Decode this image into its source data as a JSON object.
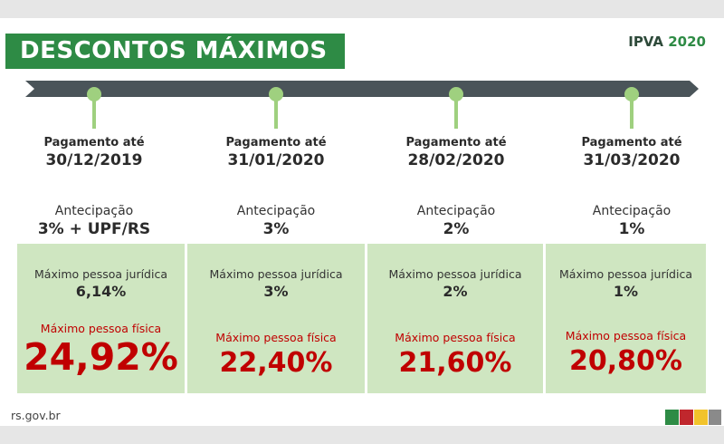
{
  "header": {
    "title": "DESCONTOS MÁXIMOS",
    "tag_prefix": "IPVA",
    "tag_year": "2020"
  },
  "columns": [
    {
      "payment_label": "Pagamento até",
      "date": "30/12/2019",
      "advance_label": "Antecipação",
      "advance_value": "3% + UPF/RS",
      "pj_label": "Máximo pessoa jurídica",
      "pj_value": "6,14%",
      "pf_label": "Máximo pessoa física",
      "pf_value": "24,92%"
    },
    {
      "payment_label": "Pagamento até",
      "date": "31/01/2020",
      "advance_label": "Antecipação",
      "advance_value": "3%",
      "pj_label": "Máximo pessoa jurídica",
      "pj_value": "3%",
      "pf_label": "Máximo pessoa física",
      "pf_value": "22,40%"
    },
    {
      "payment_label": "Pagamento até",
      "date": "28/02/2020",
      "advance_label": "Antecipação",
      "advance_value": "2%",
      "pj_label": "Máximo pessoa jurídica",
      "pj_value": "2%",
      "pf_label": "Máximo pessoa física",
      "pf_value": "21,60%"
    },
    {
      "payment_label": "Pagamento até",
      "date": "31/03/2020",
      "advance_label": "Antecipação",
      "advance_value": "1%",
      "pj_label": "Máximo pessoa jurídica",
      "pj_value": "1%",
      "pf_label": "Máximo pessoa física",
      "pf_value": "20,80%"
    }
  ],
  "footer": {
    "site": "rs.gov.br"
  },
  "colors": {
    "brand_green": "#2e8b45",
    "box_green": "#cfe6c1",
    "highlight_red": "#c00000",
    "timeline": "#4a5459",
    "pin": "#9fd07f",
    "flag": [
      "#2e8b45",
      "#c0272d",
      "#f2c32b",
      "#8a8a8a"
    ]
  }
}
